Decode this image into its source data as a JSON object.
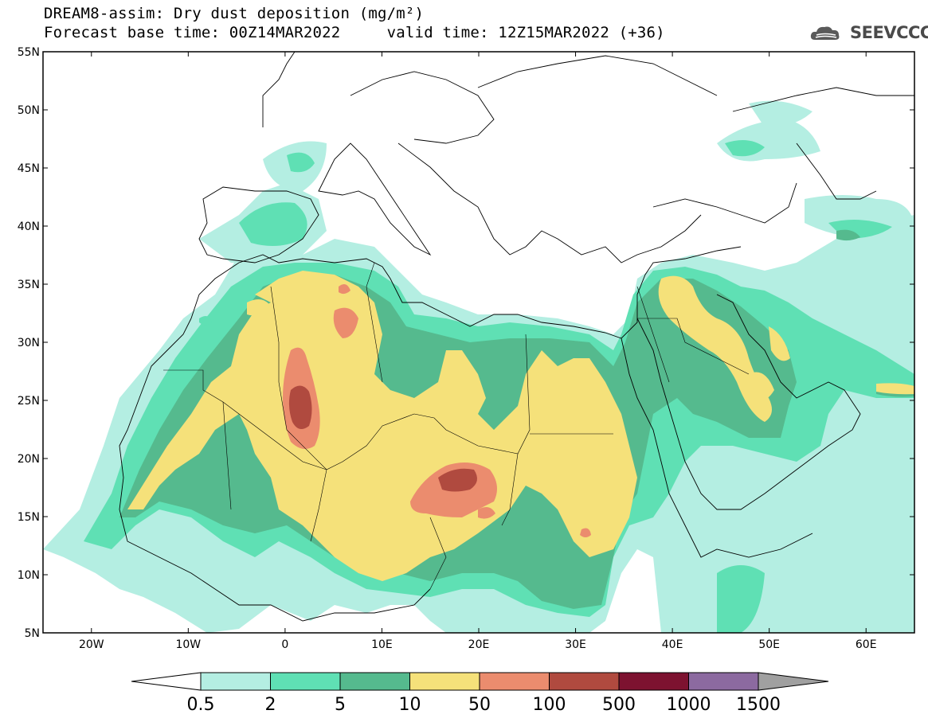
{
  "title": {
    "line1": "DREAM8-assim: Dry dust deposition (mg/m²)",
    "line2": "Forecast base time: 00Z14MAR2022     valid time: 12Z15MAR2022 (+36)"
  },
  "logo": {
    "text": "SEEVCCC",
    "icon": "cloud-icon"
  },
  "axes": {
    "lat_labels": [
      "55N",
      "50N",
      "45N",
      "40N",
      "35N",
      "30N",
      "25N",
      "20N",
      "15N",
      "10N",
      "5N"
    ],
    "lon_labels": [
      "20W",
      "10W",
      "0",
      "10E",
      "20E",
      "30E",
      "40E",
      "50E",
      "60E"
    ],
    "lat_range": [
      5,
      55
    ],
    "lon_range": [
      -25,
      65
    ]
  },
  "legend": {
    "thresholds": [
      "0.5",
      "2",
      "5",
      "10",
      "50",
      "100",
      "500",
      "1000",
      "1500"
    ],
    "colors": [
      "#b4eee2",
      "#5fe0b4",
      "#55ba8e",
      "#f5e17a",
      "#eb8c6e",
      "#b04a3f",
      "#7d1230",
      "#8c6aa0"
    ],
    "under_color": "#ffffff",
    "over_color": "#a0a0a0"
  },
  "field_colors": {
    "c05": "#b4eee2",
    "c2": "#5fe0b4",
    "c5": "#55ba8e",
    "c10": "#f5e17a",
    "c50": "#eb8c6e",
    "c100": "#b04a3f"
  }
}
